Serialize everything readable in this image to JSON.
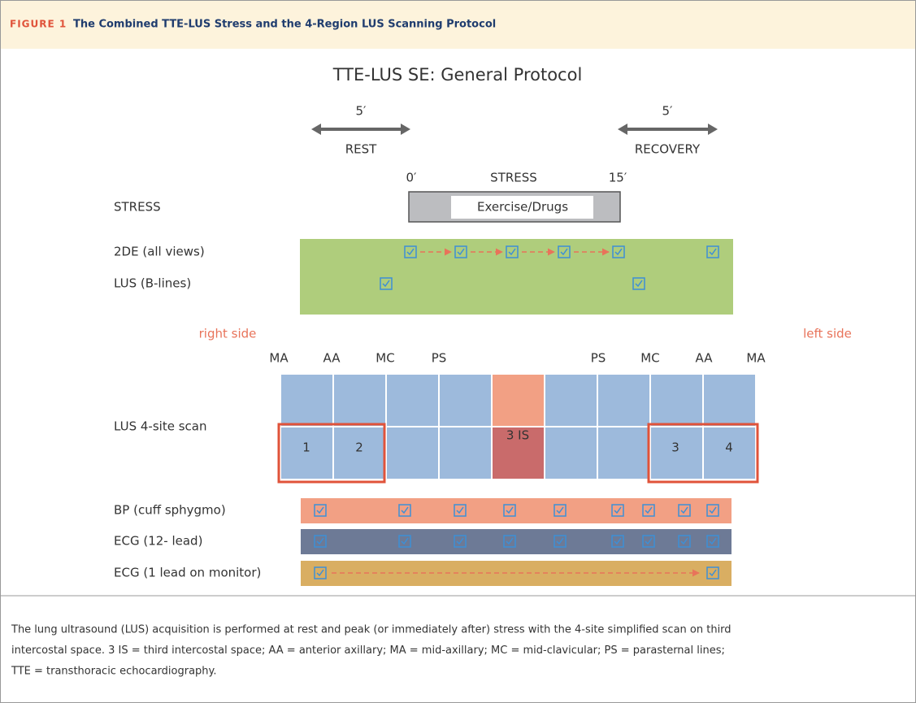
{
  "header": {
    "label": "FIGURE 1",
    "title": "The Combined TTE-LUS Stress and the 4-Region LUS Scanning Protocol"
  },
  "diagram": {
    "title": "TTE-LUS SE: General Protocol",
    "rest": {
      "duration": "5′",
      "label": "REST"
    },
    "recovery": {
      "duration": "5′",
      "label": "RECOVERY"
    },
    "stress_timeline": {
      "start": "0′",
      "label": "STRESS",
      "end": "15′"
    },
    "stress_row": {
      "label": "STRESS",
      "box": "Exercise/Drugs"
    },
    "echo_rows": [
      "2DE (all views)",
      "LUS (B-lines)"
    ],
    "sides": {
      "right": "right side",
      "left": "left side"
    },
    "columns": [
      "MA",
      "AA",
      "MC",
      "PS",
      "PS",
      "MC",
      "AA",
      "MA"
    ],
    "scan_label": "LUS 4-site scan",
    "cells": [
      "1",
      "2",
      "3 IS",
      "3",
      "4"
    ],
    "monitor_rows": [
      "BP (cuff sphygmo)",
      "ECG (12- lead)",
      "ECG (1 lead on monitor)"
    ]
  },
  "caption": [
    "The lung ultrasound (LUS) acquisition is performed at rest and peak (or immediately after) stress with the 4-site simplified scan on third",
    "intercostal space. 3 IS = third intercostal space; AA = anterior axillary; MA = mid-axillary; MC = mid-clavicular; PS = parasternal lines;",
    "TTE = transthoracic echocardiography."
  ]
}
